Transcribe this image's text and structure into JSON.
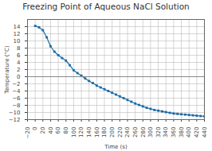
{
  "chart_data": {
    "type": "line",
    "title": "Freezing Point of Aqueous NaCl Solution",
    "xlabel": "Time (s)",
    "ylabel": "Temperature (°C)",
    "x": [
      0,
      10,
      20,
      30,
      40,
      50,
      60,
      70,
      80,
      90,
      100,
      110,
      120,
      130,
      140,
      150,
      160,
      170,
      180,
      190,
      200,
      210,
      220,
      230,
      240,
      250,
      260,
      270,
      280,
      290,
      300,
      310,
      320,
      330,
      340,
      350,
      360,
      370,
      380,
      390,
      400,
      410,
      420,
      430,
      440
    ],
    "values": [
      14.2,
      13.8,
      13.0,
      11.0,
      8.5,
      7.0,
      6.0,
      5.2,
      4.5,
      3.2,
      1.8,
      1.0,
      0.3,
      -0.5,
      -1.2,
      -1.8,
      -2.5,
      -3.0,
      -3.5,
      -4.0,
      -4.5,
      -5.0,
      -5.5,
      -6.0,
      -6.5,
      -7.0,
      -7.5,
      -7.9,
      -8.3,
      -8.7,
      -9.0,
      -9.3,
      -9.5,
      -9.7,
      -9.9,
      -10.1,
      -10.3,
      -10.4,
      -10.5,
      -10.6,
      -10.7,
      -10.8,
      -10.9,
      -11.0,
      -11.1
    ],
    "color": "#1a6ca8",
    "marker": "square",
    "hline_y": 0,
    "hline_color": "#888888",
    "xlim": [
      -20,
      440
    ],
    "ylim": [
      -12,
      16
    ],
    "xticks": [
      -20,
      0,
      20,
      40,
      60,
      80,
      100,
      120,
      140,
      160,
      180,
      200,
      220,
      240,
      260,
      280,
      300,
      320,
      340,
      360,
      380,
      400,
      420,
      440
    ],
    "yticks": [
      -12,
      -10,
      -8,
      -6,
      -4,
      -2,
      0,
      2,
      4,
      6,
      8,
      10,
      12,
      14
    ],
    "grid": true
  }
}
